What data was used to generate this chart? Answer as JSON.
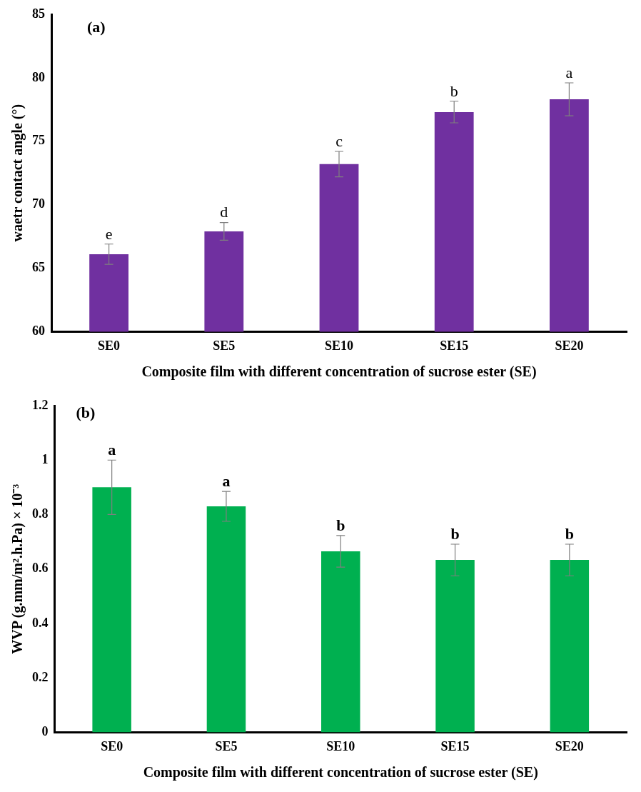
{
  "chart_data": [
    {
      "type": "bar",
      "xlabel": "Composite film with different concentration of sucrose ester (SE)",
      "ylabel": "waetr contact angle (°)",
      "categories": [
        "SE0",
        "SE5",
        "SE10",
        "SE15",
        "SE20"
      ],
      "values": [
        66.1,
        67.9,
        73.2,
        77.3,
        78.3
      ],
      "errors": [
        0.8,
        0.7,
        1.0,
        0.85,
        1.3
      ],
      "color": "#7030a0",
      "ylim": [
        60,
        85
      ],
      "yticks": [
        60,
        65,
        70,
        75,
        80,
        85
      ],
      "grid": false,
      "legend": false,
      "annotations": [
        "(a)",
        {
          "text": "e",
          "x": "SE0",
          "y": 66.9
        },
        {
          "text": "d",
          "x": "SE5",
          "y": 68.6
        },
        {
          "text": "c",
          "x": "SE10",
          "y": 74.2
        },
        {
          "text": "b",
          "x": "SE15",
          "y": 78.15
        },
        {
          "text": "a",
          "x": "SE20",
          "y": 79.6
        }
      ]
    },
    {
      "type": "bar",
      "xlabel": "Composite film with different concentration of sucrose ester (SE)",
      "ylabel": "WVP (g.mm/m².h.Pa) × 10⁻³",
      "categories": [
        "SE0",
        "SE5",
        "SE10",
        "SE15",
        "SE20"
      ],
      "values": [
        0.9,
        0.83,
        0.665,
        0.633,
        0.633
      ],
      "errors": [
        0.1,
        0.055,
        0.058,
        0.058,
        0.058
      ],
      "color": "#00b050",
      "ylim": [
        0,
        1.2
      ],
      "yticks": [
        0,
        0.2,
        0.4,
        0.6,
        0.8,
        1,
        1.2
      ],
      "grid": false,
      "legend": false,
      "annotations": [
        "(b)",
        {
          "text": "a",
          "x": "SE0",
          "y": 1.0
        },
        {
          "text": "a",
          "x": "SE5",
          "y": 0.885
        },
        {
          "text": "b",
          "x": "SE10",
          "y": 0.723
        },
        {
          "text": "b",
          "x": "SE15",
          "y": 0.691
        },
        {
          "text": "b",
          "x": "SE20",
          "y": 0.691
        }
      ]
    }
  ]
}
